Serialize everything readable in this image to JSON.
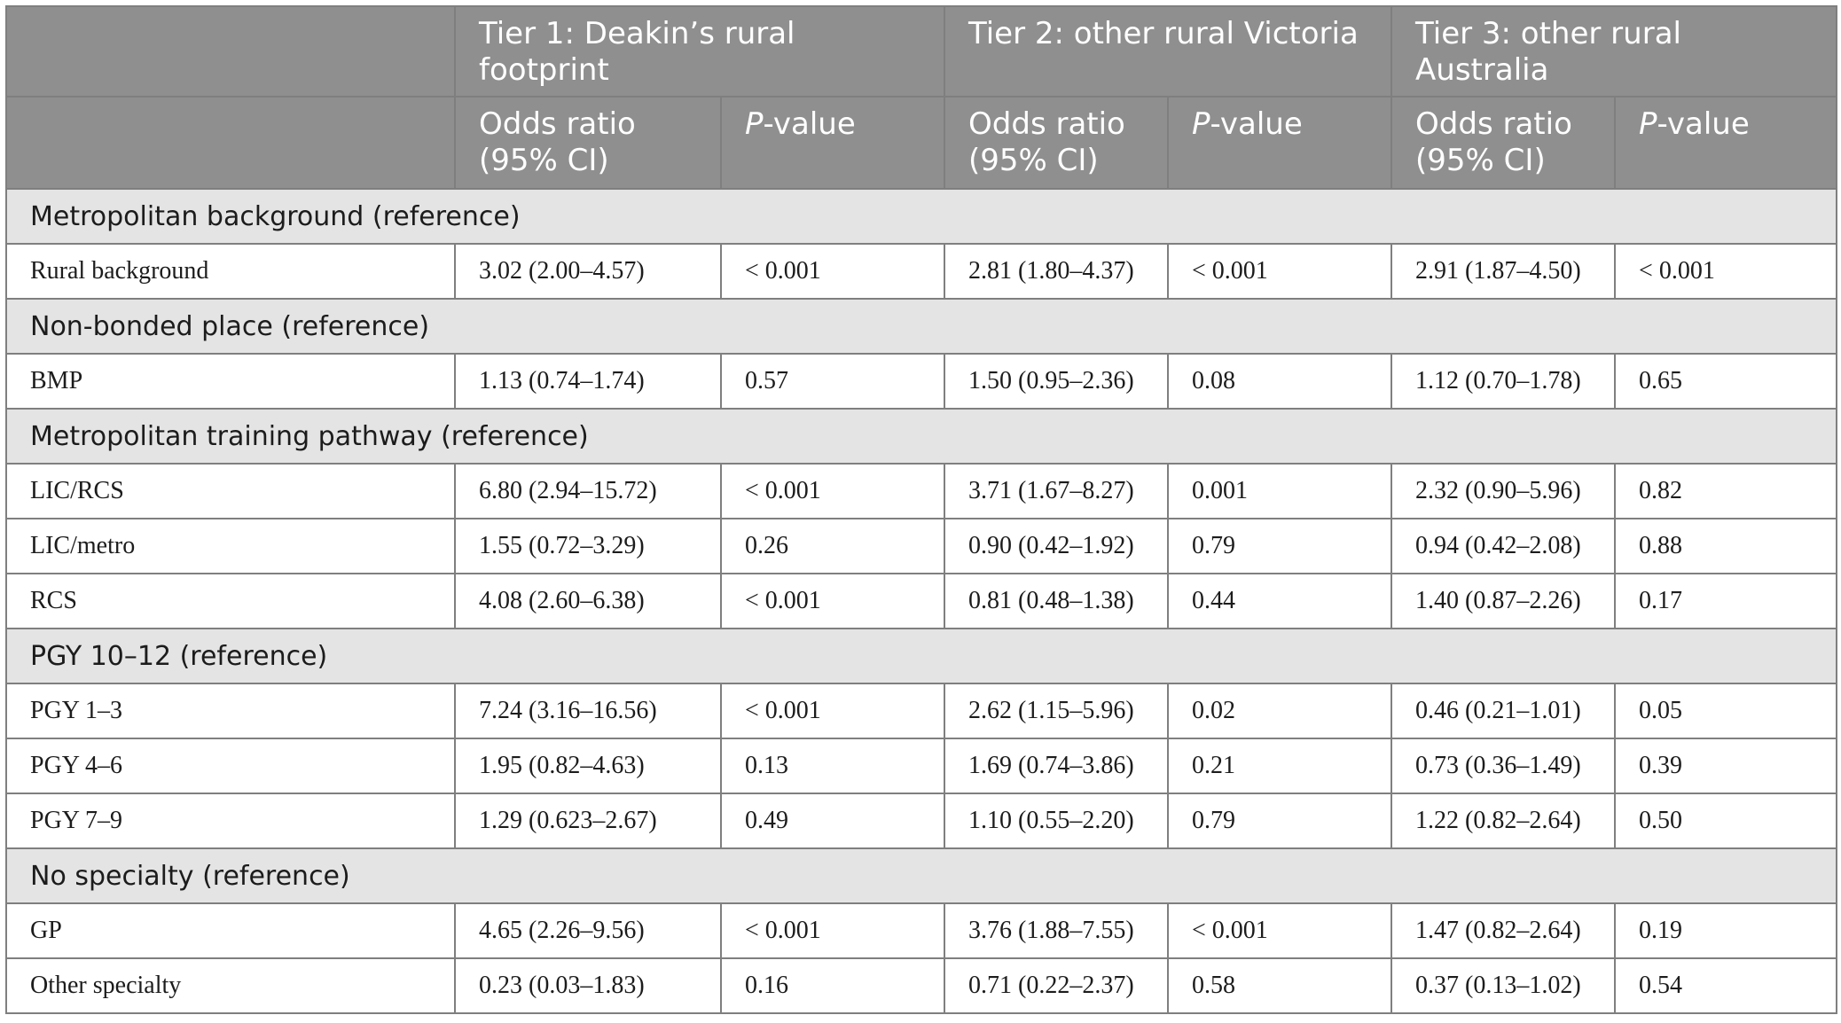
{
  "header": {
    "tiers": [
      "Tier 1: Deakin’s rural footprint",
      "Tier 2: other rural Victoria",
      "Tier 3: other rural Australia"
    ],
    "odds_ratio_label": "Odds ratio (95% CI)",
    "p_letter": "P",
    "p_suffix": "-value"
  },
  "sections": [
    {
      "title": "Metropolitan background (reference)",
      "rows": [
        {
          "label": "Rural background",
          "values": [
            "3.02 (2.00–4.57)",
            "< 0.001",
            "2.81 (1.80–4.37)",
            "< 0.001",
            "2.91 (1.87–4.50)",
            "< 0.001"
          ]
        }
      ]
    },
    {
      "title": "Non-bonded place (reference)",
      "rows": [
        {
          "label": "BMP",
          "values": [
            "1.13 (0.74–1.74)",
            "0.57",
            "1.50 (0.95–2.36)",
            "0.08",
            "1.12 (0.70–1.78)",
            "0.65"
          ]
        }
      ]
    },
    {
      "title": "Metropolitan training pathway (reference)",
      "rows": [
        {
          "label": "LIC/RCS",
          "values": [
            "6.80 (2.94–15.72)",
            "< 0.001",
            "3.71 (1.67–8.27)",
            "0.001",
            "2.32 (0.90–5.96)",
            "0.82"
          ]
        },
        {
          "label": "LIC/metro",
          "values": [
            "1.55 (0.72–3.29)",
            "0.26",
            "0.90 (0.42–1.92)",
            "0.79",
            "0.94 (0.42–2.08)",
            "0.88"
          ]
        },
        {
          "label": "RCS",
          "values": [
            "4.08 (2.60–6.38)",
            "< 0.001",
            "0.81 (0.48–1.38)",
            "0.44",
            "1.40 (0.87–2.26)",
            "0.17"
          ]
        }
      ]
    },
    {
      "title": "PGY 10–12 (reference)",
      "rows": [
        {
          "label": "PGY 1–3",
          "values": [
            "7.24 (3.16–16.56)",
            "< 0.001",
            "2.62 (1.15–5.96)",
            "0.02",
            "0.46 (0.21–1.01)",
            "0.05"
          ]
        },
        {
          "label": "PGY 4–6",
          "values": [
            "1.95 (0.82–4.63)",
            "0.13",
            "1.69 (0.74–3.86)",
            "0.21",
            "0.73 (0.36–1.49)",
            "0.39"
          ]
        },
        {
          "label": "PGY 7–9",
          "values": [
            "1.29 (0.623–2.67)",
            "0.49",
            "1.10 (0.55–2.20)",
            "0.79",
            "1.22 (0.82–2.64)",
            "0.50"
          ]
        }
      ]
    },
    {
      "title": "No specialty (reference)",
      "rows": [
        {
          "label": "GP",
          "values": [
            "4.65 (2.26–9.56)",
            "< 0.001",
            "3.76 (1.88–7.55)",
            "< 0.001",
            "1.47 (0.82–2.64)",
            "0.19"
          ]
        },
        {
          "label": "Other specialty",
          "values": [
            "0.23 (0.03–1.83)",
            "0.16",
            "0.71 (0.22–2.37)",
            "0.58",
            "0.37 (0.13–1.02)",
            "0.54"
          ]
        }
      ]
    }
  ]
}
